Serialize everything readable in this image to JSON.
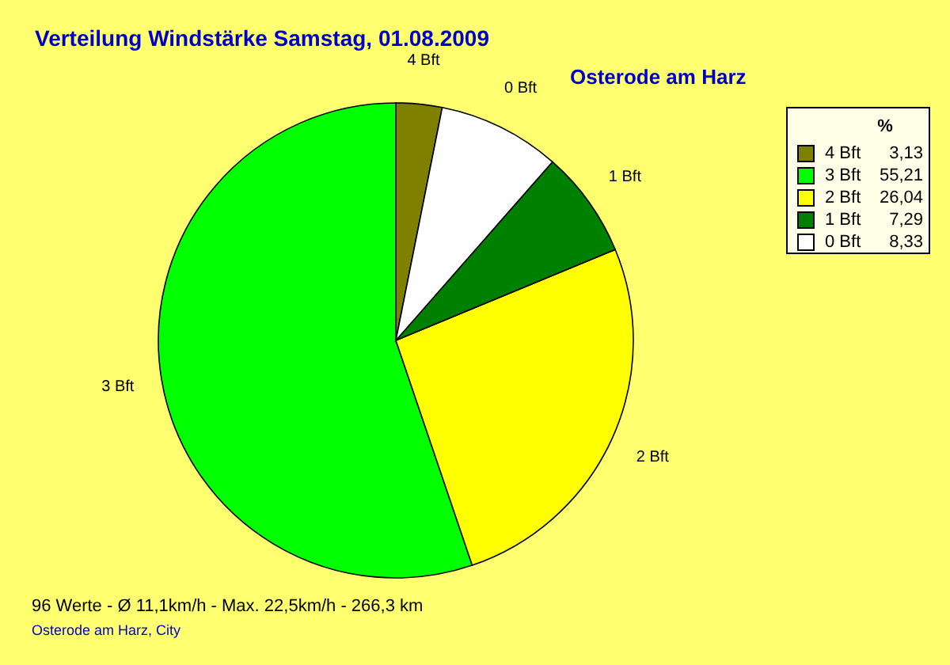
{
  "chart_data": {
    "type": "pie",
    "title": "Verteilung Windstärke  Samstag, 01.08.2009",
    "subtitle": "Osterode am Harz",
    "categories": [
      "4 Bft",
      "3 Bft",
      "2 Bft",
      "1 Bft",
      "0 Bft"
    ],
    "values": [
      3.13,
      55.21,
      26.04,
      7.29,
      8.33
    ],
    "colors": [
      "#808000",
      "#00ff00",
      "#ffff00",
      "#008000",
      "#ffffff"
    ],
    "value_labels": [
      "3,13",
      "55,21",
      "26,04",
      "7,29",
      "8,33"
    ],
    "legend_title": "%",
    "legend": "top right",
    "annotations": [
      "96 Werte   -   Ø 11,1km/h  -  Max. 22,5km/h   -   266,3 km",
      "Osterode am Harz, City"
    ]
  }
}
